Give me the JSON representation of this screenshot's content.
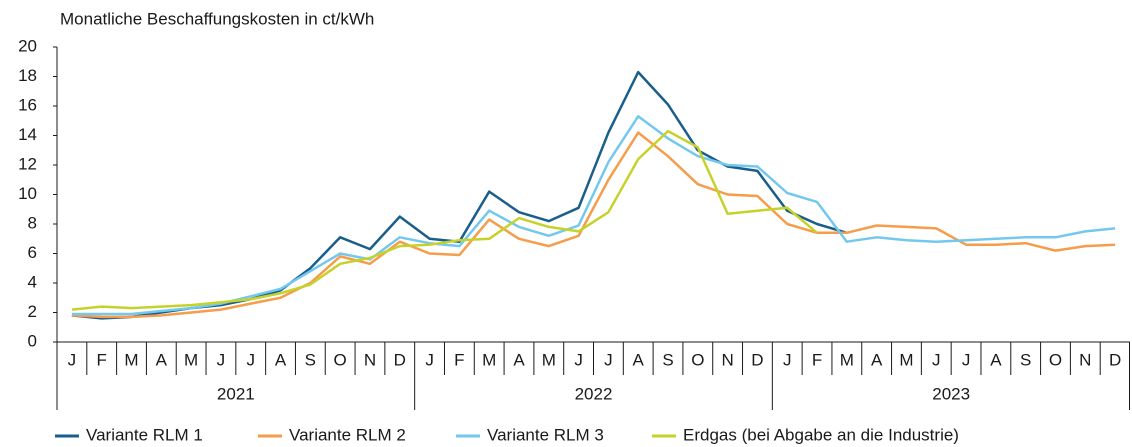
{
  "chart_data": {
    "type": "line",
    "title": "Monatliche Beschaffungskosten in ct/kWh",
    "categories": [
      "J",
      "F",
      "M",
      "A",
      "M",
      "J",
      "J",
      "A",
      "S",
      "O",
      "N",
      "D",
      "J",
      "F",
      "M",
      "A",
      "M",
      "J",
      "J",
      "A",
      "S",
      "O",
      "N",
      "D",
      "J",
      "F",
      "M",
      "A",
      "M",
      "J",
      "J",
      "A",
      "S",
      "O",
      "N",
      "D"
    ],
    "year_labels": [
      "2021",
      "2022",
      "2023"
    ],
    "ylim": [
      0,
      20
    ],
    "yticks": [
      0,
      2,
      4,
      6,
      8,
      10,
      12,
      14,
      16,
      18,
      20
    ],
    "grid": false,
    "series": [
      {
        "name": "Variante RLM 1",
        "color": "#1a5e8c",
        "values": [
          1.8,
          1.6,
          1.7,
          2.0,
          2.3,
          2.5,
          2.9,
          3.5,
          5.0,
          7.1,
          6.3,
          8.5,
          7.0,
          6.8,
          10.2,
          8.8,
          8.2,
          9.1,
          14.2,
          18.3,
          16.1,
          13.0,
          11.9,
          11.6,
          8.9,
          8.0,
          7.4,
          null,
          null,
          null,
          null,
          null,
          null,
          null,
          null,
          null
        ]
      },
      {
        "name": "Variante RLM 2",
        "color": "#f59d4b",
        "values": [
          1.8,
          1.7,
          1.7,
          1.8,
          2.0,
          2.2,
          2.6,
          3.0,
          4.0,
          5.8,
          5.3,
          6.8,
          6.0,
          5.9,
          8.3,
          7.0,
          6.5,
          7.2,
          11.0,
          14.2,
          12.6,
          10.7,
          10.0,
          9.9,
          8.0,
          7.4,
          7.4,
          7.9,
          7.8,
          7.7,
          6.6,
          6.6,
          6.7,
          6.2,
          6.5,
          6.6
        ]
      },
      {
        "name": "Variante RLM 3",
        "color": "#74c8ee",
        "values": [
          1.9,
          1.9,
          1.9,
          2.1,
          2.3,
          2.6,
          3.1,
          3.6,
          4.8,
          6.0,
          5.6,
          7.1,
          6.7,
          6.5,
          8.9,
          7.8,
          7.2,
          7.9,
          12.2,
          15.3,
          13.8,
          12.6,
          12.0,
          11.9,
          10.1,
          9.5,
          6.8,
          7.1,
          6.9,
          6.8,
          6.9,
          7.0,
          7.1,
          7.1,
          7.5,
          7.7
        ]
      },
      {
        "name": "Erdgas (bei Abgabe an die Industrie)",
        "color": "#c5d22a",
        "values": [
          2.2,
          2.4,
          2.3,
          2.4,
          2.5,
          2.7,
          2.9,
          3.3,
          3.9,
          5.3,
          5.7,
          6.5,
          6.6,
          6.9,
          7.0,
          8.4,
          7.8,
          7.5,
          8.8,
          12.4,
          14.3,
          13.2,
          8.7,
          8.9,
          9.1,
          7.4,
          null,
          null,
          null,
          null,
          null,
          null,
          null,
          null,
          null,
          null
        ]
      }
    ]
  }
}
